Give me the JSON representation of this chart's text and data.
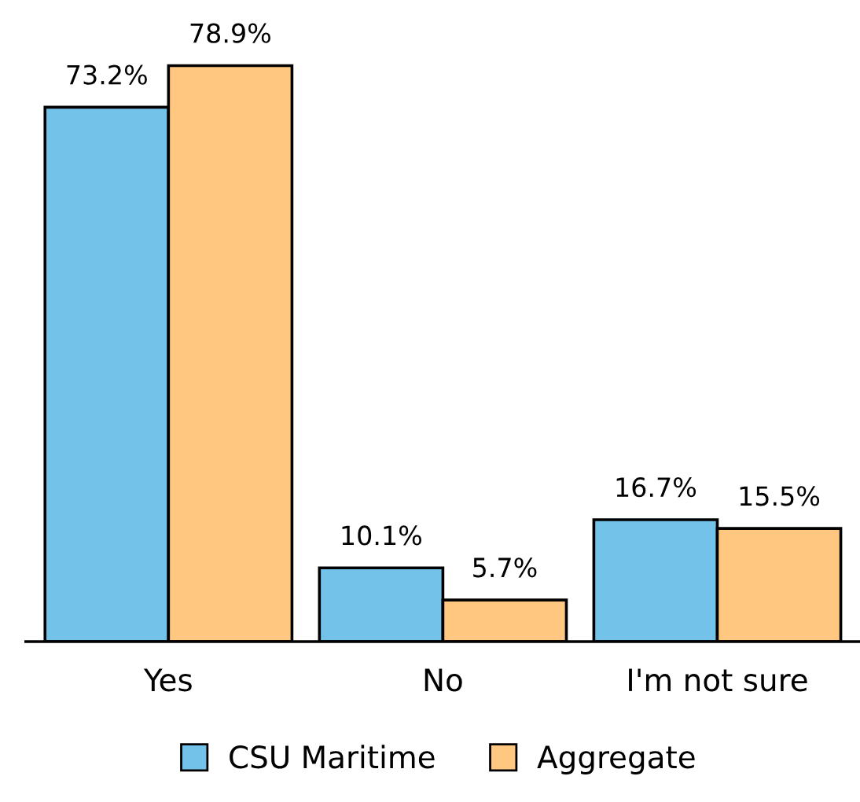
{
  "chart_data": {
    "type": "bar",
    "categories": [
      "Yes",
      "No",
      "I'm not sure"
    ],
    "series": [
      {
        "name": "CSU Maritime",
        "color": "#73c2ea",
        "values": [
          73.2,
          10.1,
          16.7
        ],
        "value_labels": [
          "73.2%",
          "10.1%",
          "16.7%"
        ]
      },
      {
        "name": "Aggregate",
        "color": "#ffc77f",
        "values": [
          78.9,
          5.7,
          15.5
        ],
        "value_labels": [
          "78.9%",
          "5.7%",
          "15.5%"
        ]
      }
    ],
    "legend": "bottom",
    "grid": false
  }
}
